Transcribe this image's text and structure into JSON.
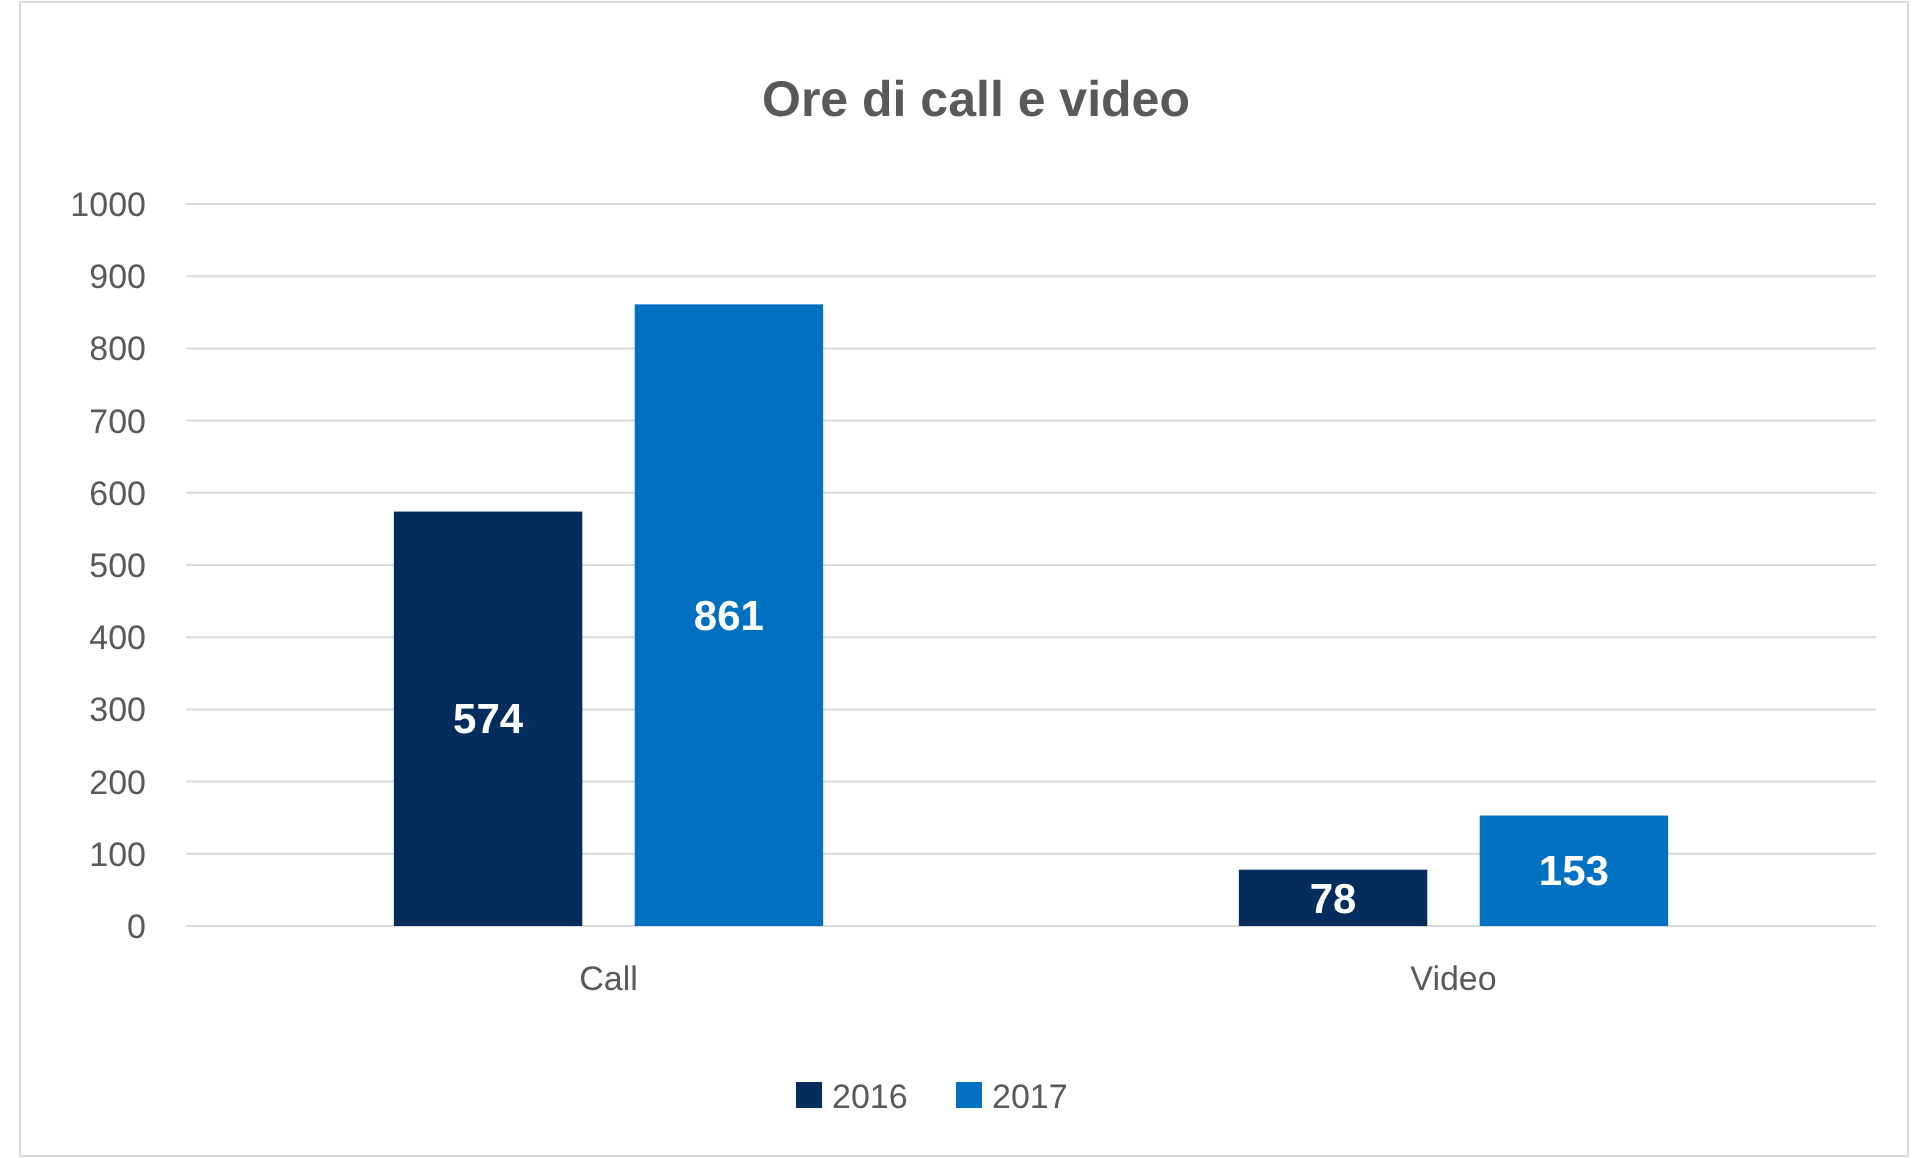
{
  "chart_data": {
    "type": "bar",
    "title": "Ore di call e video",
    "categories": [
      "Call",
      "Video"
    ],
    "series": [
      {
        "name": "2016",
        "color": "#042c5c",
        "values": [
          574,
          78
        ]
      },
      {
        "name": "2017",
        "color": "#0070c0",
        "values": [
          861,
          153
        ]
      }
    ],
    "ylim": [
      0,
      1000
    ],
    "yticks": [
      0,
      100,
      200,
      300,
      400,
      500,
      600,
      700,
      800,
      900,
      1000
    ],
    "grid": "y",
    "legend": "bottom",
    "data_labels": true
  }
}
